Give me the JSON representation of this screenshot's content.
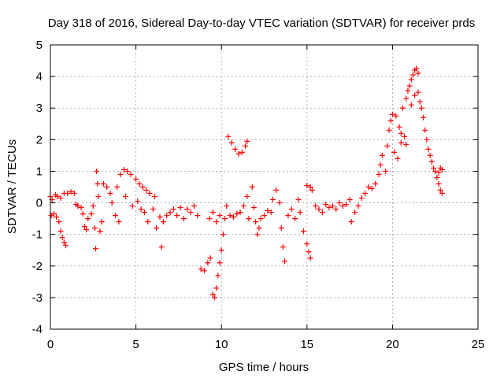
{
  "chart_data": {
    "type": "scatter",
    "title": "Day 318 of 2016, Sidereal Day-to-day VTEC variation (SDTVAR) for receiver prds",
    "xlabel": "GPS time / hours",
    "ylabel": "SDTVAR / TECUs",
    "xlim": [
      0,
      25
    ],
    "ylim": [
      -4,
      5
    ],
    "xticks": [
      0,
      5,
      10,
      15,
      20,
      25
    ],
    "yticks": [
      -4,
      -3,
      -2,
      -1,
      0,
      1,
      2,
      3,
      4,
      5
    ],
    "xtick_labels": [
      "0",
      "5",
      "10",
      "15",
      "20",
      "25"
    ],
    "ytick_labels": [
      "-4",
      "-3",
      "-2",
      "-1",
      "0",
      "1",
      "2",
      "3",
      "4",
      "5"
    ],
    "grid": true,
    "marker": "+",
    "color": "#ff0000",
    "series": [
      {
        "name": "prds",
        "points": [
          [
            0.0,
            0.2
          ],
          [
            0.05,
            -0.4
          ],
          [
            0.1,
            0.1
          ],
          [
            0.2,
            -0.35
          ],
          [
            0.3,
            0.25
          ],
          [
            0.35,
            -0.45
          ],
          [
            0.5,
            -0.6
          ],
          [
            0.6,
            -0.9
          ],
          [
            0.7,
            -1.1
          ],
          [
            0.8,
            -1.25
          ],
          [
            0.9,
            -1.35
          ],
          [
            0.4,
            0.2
          ],
          [
            0.6,
            0.15
          ],
          [
            0.8,
            0.3
          ],
          [
            1.0,
            0.3
          ],
          [
            1.2,
            0.35
          ],
          [
            1.4,
            0.3
          ],
          [
            1.5,
            -0.05
          ],
          [
            1.6,
            -0.1
          ],
          [
            1.8,
            -0.15
          ],
          [
            1.9,
            -0.35
          ],
          [
            2.0,
            -0.75
          ],
          [
            2.1,
            -0.85
          ],
          [
            2.2,
            -0.5
          ],
          [
            2.4,
            -0.35
          ],
          [
            2.5,
            -0.1
          ],
          [
            2.6,
            -0.8
          ],
          [
            2.65,
            -1.45
          ],
          [
            2.7,
            1.0
          ],
          [
            2.75,
            0.6
          ],
          [
            2.8,
            0.2
          ],
          [
            2.9,
            -0.9
          ],
          [
            3.0,
            -0.6
          ],
          [
            3.1,
            0.6
          ],
          [
            3.3,
            0.5
          ],
          [
            3.5,
            0.3
          ],
          [
            3.6,
            0.0
          ],
          [
            3.8,
            -0.4
          ],
          [
            4.0,
            -0.6
          ],
          [
            3.9,
            0.5
          ],
          [
            4.1,
            0.9
          ],
          [
            4.3,
            1.05
          ],
          [
            4.5,
            1.0
          ],
          [
            4.4,
            0.2
          ],
          [
            4.7,
            0.9
          ],
          [
            5.0,
            0.75
          ],
          [
            5.2,
            0.6
          ],
          [
            4.8,
            -0.1
          ],
          [
            5.1,
            0.05
          ],
          [
            5.3,
            -0.2
          ],
          [
            5.5,
            -0.3
          ],
          [
            5.4,
            0.5
          ],
          [
            5.6,
            0.4
          ],
          [
            5.8,
            0.3
          ],
          [
            5.7,
            -0.6
          ],
          [
            6.0,
            -0.2
          ],
          [
            6.1,
            0.2
          ],
          [
            6.2,
            -0.8
          ],
          [
            6.4,
            -0.45
          ],
          [
            6.5,
            -1.4
          ],
          [
            6.6,
            -0.6
          ],
          [
            6.8,
            -0.4
          ],
          [
            7.0,
            -0.3
          ],
          [
            7.2,
            -0.2
          ],
          [
            7.4,
            -0.4
          ],
          [
            7.6,
            -0.15
          ],
          [
            7.8,
            -0.5
          ],
          [
            8.0,
            -0.2
          ],
          [
            8.2,
            -0.3
          ],
          [
            8.4,
            -0.1
          ],
          [
            8.6,
            -0.4
          ],
          [
            8.8,
            -2.1
          ],
          [
            9.0,
            -2.15
          ],
          [
            9.2,
            -1.9
          ],
          [
            9.35,
            -1.75
          ],
          [
            9.5,
            -2.9
          ],
          [
            9.6,
            -3.0
          ],
          [
            9.7,
            -2.7
          ],
          [
            9.8,
            -2.3
          ],
          [
            9.9,
            -1.9
          ],
          [
            10.0,
            -1.5
          ],
          [
            10.1,
            -1.0
          ],
          [
            10.2,
            -0.5
          ],
          [
            10.3,
            -0.1
          ],
          [
            9.3,
            -0.5
          ],
          [
            9.5,
            -0.3
          ],
          [
            9.7,
            -0.6
          ],
          [
            9.9,
            -0.4
          ],
          [
            10.4,
            2.1
          ],
          [
            10.6,
            1.9
          ],
          [
            10.8,
            1.7
          ],
          [
            11.0,
            1.55
          ],
          [
            11.2,
            1.6
          ],
          [
            11.4,
            1.8
          ],
          [
            11.5,
            1.95
          ],
          [
            10.5,
            -0.4
          ],
          [
            10.7,
            -0.45
          ],
          [
            10.9,
            -0.35
          ],
          [
            11.1,
            -0.3
          ],
          [
            11.3,
            -0.1
          ],
          [
            11.5,
            0.2
          ],
          [
            11.6,
            -0.5
          ],
          [
            11.8,
            0.5
          ],
          [
            11.9,
            -0.15
          ],
          [
            12.0,
            -0.6
          ],
          [
            12.1,
            -1.0
          ],
          [
            12.2,
            -0.8
          ],
          [
            12.3,
            -0.5
          ],
          [
            12.5,
            -0.4
          ],
          [
            12.7,
            -0.25
          ],
          [
            12.9,
            -0.3
          ],
          [
            13.0,
            0.1
          ],
          [
            13.2,
            0.4
          ],
          [
            13.4,
            0.0
          ],
          [
            13.5,
            -0.8
          ],
          [
            13.6,
            -1.4
          ],
          [
            13.7,
            -1.85
          ],
          [
            13.9,
            -0.4
          ],
          [
            14.1,
            -0.2
          ],
          [
            14.3,
            -0.5
          ],
          [
            14.5,
            0.1
          ],
          [
            14.6,
            -0.3
          ],
          [
            14.8,
            -0.9
          ],
          [
            15.0,
            -1.3
          ],
          [
            15.1,
            -1.55
          ],
          [
            15.2,
            -1.75
          ],
          [
            15.0,
            0.55
          ],
          [
            15.2,
            0.5
          ],
          [
            15.3,
            0.4
          ],
          [
            15.5,
            -0.1
          ],
          [
            15.7,
            -0.2
          ],
          [
            15.9,
            -0.3
          ],
          [
            16.1,
            -0.05
          ],
          [
            16.3,
            -0.15
          ],
          [
            16.5,
            -0.1
          ],
          [
            16.7,
            -0.2
          ],
          [
            16.9,
            0.0
          ],
          [
            17.1,
            -0.1
          ],
          [
            17.3,
            -0.05
          ],
          [
            17.5,
            0.1
          ],
          [
            17.6,
            -0.6
          ],
          [
            17.8,
            -0.3
          ],
          [
            18.0,
            -0.1
          ],
          [
            18.2,
            0.15
          ],
          [
            18.4,
            0.3
          ],
          [
            18.6,
            0.5
          ],
          [
            18.8,
            0.45
          ],
          [
            19.0,
            0.6
          ],
          [
            19.2,
            0.9
          ],
          [
            19.3,
            1.2
          ],
          [
            19.4,
            1.5
          ],
          [
            19.6,
            1.0
          ],
          [
            19.7,
            1.8
          ],
          [
            19.8,
            2.3
          ],
          [
            19.9,
            2.6
          ],
          [
            20.0,
            2.8
          ],
          [
            20.2,
            2.75
          ],
          [
            20.4,
            2.4
          ],
          [
            20.5,
            2.2
          ],
          [
            20.6,
            3.0
          ],
          [
            20.8,
            3.3
          ],
          [
            20.9,
            3.55
          ],
          [
            21.0,
            3.7
          ],
          [
            21.1,
            3.9
          ],
          [
            21.2,
            4.05
          ],
          [
            21.3,
            4.2
          ],
          [
            21.4,
            4.25
          ],
          [
            21.5,
            4.1
          ],
          [
            21.1,
            3.1
          ],
          [
            21.3,
            3.4
          ],
          [
            21.5,
            3.5
          ],
          [
            21.6,
            3.2
          ],
          [
            21.7,
            3.0
          ],
          [
            21.8,
            2.7
          ],
          [
            21.9,
            2.3
          ],
          [
            22.0,
            2.0
          ],
          [
            22.1,
            1.7
          ],
          [
            22.2,
            1.5
          ],
          [
            22.3,
            1.3
          ],
          [
            22.4,
            1.1
          ],
          [
            22.5,
            1.0
          ],
          [
            22.6,
            0.8
          ],
          [
            22.7,
            0.6
          ],
          [
            22.8,
            0.4
          ],
          [
            22.9,
            0.3
          ],
          [
            22.9,
            1.05
          ],
          [
            22.8,
            1.1
          ],
          [
            22.7,
            0.95
          ],
          [
            20.1,
            1.6
          ],
          [
            20.3,
            1.4
          ],
          [
            20.5,
            1.9
          ],
          [
            20.7,
            2.1
          ],
          [
            20.8,
            1.85
          ]
        ]
      }
    ]
  }
}
